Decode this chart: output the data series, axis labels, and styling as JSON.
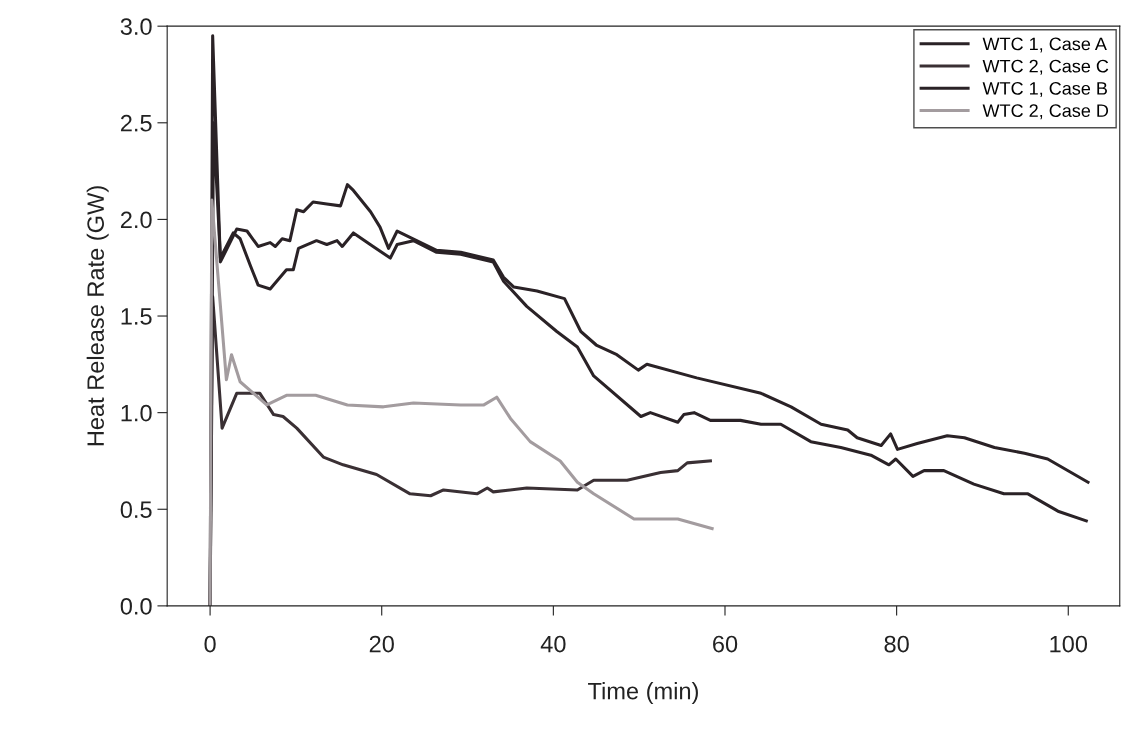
{
  "chart_data": {
    "type": "line",
    "xlabel": "Time (min)",
    "ylabel": "Heat Release Rate (GW)",
    "xlim": [
      -5,
      106
    ],
    "xticks": [
      0,
      20,
      40,
      60,
      80,
      100
    ],
    "ylim": [
      0,
      3.0
    ],
    "yticks": [
      {
        "value": 0,
        "label": "0.0"
      },
      {
        "value": 0.5,
        "label": "0.5"
      },
      {
        "value": 1,
        "label": "1.0"
      },
      {
        "value": 1.5,
        "label": "1.5"
      },
      {
        "value": 2,
        "label": "2.0"
      },
      {
        "value": 2.5,
        "label": "2.5"
      },
      {
        "value": 3,
        "label": "3.0"
      }
    ],
    "grid": false,
    "legend": "top right",
    "marker": "none",
    "line_style": "solid",
    "series": [
      {
        "name": "WTC 1, Case A",
        "color": "#2a2226",
        "x": [
          0,
          0.3,
          1.2,
          3.1,
          4.3,
          5.6,
          7.0,
          7.6,
          8.4,
          9.3,
          10.1,
          10.9,
          12.0,
          13.6,
          15.2,
          16.0,
          16.7,
          18.7,
          19.8,
          20.8,
          21.8,
          26.4,
          29.2,
          33.0,
          34.2,
          35.4,
          38.1,
          41.3,
          43.2,
          45.0,
          47.4,
          49.9,
          50.9,
          56.7,
          64.2,
          67.7,
          71.2,
          74.3,
          75.4,
          78.2,
          79.3,
          80.1,
          82.4,
          85.9,
          87.9,
          91.4,
          94.9,
          97.6,
          102.3
        ],
        "values": [
          0.0,
          2.95,
          1.78,
          1.95,
          1.94,
          1.86,
          1.88,
          1.86,
          1.9,
          1.89,
          2.05,
          2.04,
          2.09,
          2.08,
          2.07,
          2.18,
          2.15,
          2.04,
          1.96,
          1.85,
          1.94,
          1.84,
          1.83,
          1.79,
          1.7,
          1.65,
          1.63,
          1.59,
          1.42,
          1.35,
          1.3,
          1.22,
          1.25,
          1.18,
          1.1,
          1.03,
          0.94,
          0.91,
          0.87,
          0.83,
          0.89,
          0.81,
          0.84,
          0.88,
          0.87,
          0.82,
          0.79,
          0.76,
          0.64
        ]
      },
      {
        "name": "WTC 2, Case C",
        "color": "#3a3034",
        "x": [
          0,
          0.3,
          1.4,
          3.1,
          5.8,
          7.4,
          8.5,
          10.1,
          13.2,
          15.5,
          19.4,
          23.3,
          25.7,
          27.2,
          31.1,
          32.3,
          33.0,
          36.9,
          42.8,
          44.7,
          48.6,
          52.5,
          54.5,
          55.6,
          58.3
        ],
        "values": [
          0.0,
          1.6,
          0.92,
          1.1,
          1.1,
          0.99,
          0.98,
          0.92,
          0.77,
          0.73,
          0.68,
          0.58,
          0.57,
          0.6,
          0.58,
          0.61,
          0.59,
          0.61,
          0.6,
          0.65,
          0.65,
          0.69,
          0.7,
          0.74,
          0.75
        ]
      },
      {
        "name": "WTC 1, Case B",
        "color": "#2a2226",
        "x": [
          0,
          0.4,
          1.2,
          2.7,
          3.5,
          4.7,
          5.6,
          7.0,
          8.9,
          9.7,
          10.3,
          12.4,
          13.6,
          14.8,
          15.4,
          16.7,
          19.0,
          21.0,
          21.8,
          23.7,
          26.4,
          29.2,
          33.0,
          34.2,
          36.9,
          40.4,
          42.8,
          44.7,
          50.2,
          51.3,
          54.5,
          55.2,
          56.4,
          58.3,
          61.8,
          64.2,
          66.5,
          70.0,
          73.5,
          77.0,
          79.1,
          79.9,
          81.9,
          83.2,
          85.5,
          89.0,
          92.5,
          95.3,
          98.8,
          102.1
        ],
        "values": [
          0.0,
          2.5,
          1.8,
          1.93,
          1.9,
          1.76,
          1.66,
          1.64,
          1.74,
          1.74,
          1.85,
          1.89,
          1.87,
          1.89,
          1.86,
          1.93,
          1.86,
          1.8,
          1.87,
          1.89,
          1.83,
          1.82,
          1.78,
          1.68,
          1.55,
          1.42,
          1.34,
          1.19,
          0.98,
          1.0,
          0.95,
          0.99,
          1.0,
          0.96,
          0.96,
          0.94,
          0.94,
          0.85,
          0.82,
          0.78,
          0.73,
          0.76,
          0.67,
          0.7,
          0.7,
          0.63,
          0.58,
          0.58,
          0.49,
          0.44
        ]
      },
      {
        "name": "WTC 2, Case D",
        "color": "#a39c9f",
        "x": [
          0,
          0.2,
          1.9,
          2.5,
          3.5,
          6.6,
          8.9,
          12.3,
          16.0,
          20.2,
          23.7,
          29.2,
          31.9,
          33.4,
          35.0,
          37.3,
          40.8,
          42.8,
          44.7,
          49.4,
          52.5,
          54.5,
          58.5
        ],
        "values": [
          0.0,
          2.1,
          1.17,
          1.3,
          1.16,
          1.04,
          1.09,
          1.09,
          1.04,
          1.03,
          1.05,
          1.04,
          1.04,
          1.08,
          0.97,
          0.85,
          0.75,
          0.64,
          0.58,
          0.45,
          0.45,
          0.45,
          0.4
        ]
      }
    ]
  }
}
